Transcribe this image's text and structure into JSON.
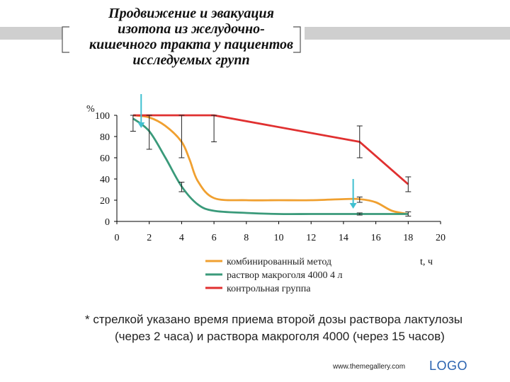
{
  "slide": {
    "title_lines": [
      "Продвижение и эвакуация",
      "изотопа из желудочно-",
      "кишечного тракта у пациентов",
      "исследуемых групп"
    ],
    "note_marker": "*",
    "note_line1": "стрелкой указано время приема второй дозы раствора лактулозы",
    "note_line2": "(через 2 часа) и раствора макроголя 4000 (через 15 часов)",
    "footer_url": "www.themegallery.com",
    "footer_logo": "LOGO"
  },
  "chart_data": {
    "type": "line",
    "title": "",
    "xlabel": "t, ч",
    "ylabel": "%",
    "xlim": [
      0,
      20
    ],
    "ylim": [
      0,
      100
    ],
    "x_ticks": [
      0,
      2,
      4,
      6,
      8,
      10,
      12,
      14,
      16,
      18,
      20
    ],
    "y_ticks": [
      0,
      20,
      40,
      60,
      80,
      100
    ],
    "grid": false,
    "legend_position": "bottom-center",
    "series": [
      {
        "name": "комбинированный метод",
        "color": "#f0a030",
        "x": [
          1,
          2,
          3,
          4,
          4.5,
          5,
          6,
          8,
          10,
          12,
          14,
          15,
          16,
          17,
          18
        ],
        "y": [
          100,
          98,
          90,
          75,
          58,
          38,
          22,
          20,
          20,
          20,
          21,
          21,
          18,
          10,
          7
        ]
      },
      {
        "name": "раствор макроголя 4000 4 л",
        "color": "#3a9a7a",
        "x": [
          1,
          2,
          3,
          4,
          5,
          6,
          8,
          10,
          12,
          14,
          15,
          16,
          18
        ],
        "y": [
          97,
          85,
          60,
          33,
          16,
          10,
          8,
          7,
          7,
          7,
          7,
          7,
          7
        ]
      },
      {
        "name": "контрольная группа",
        "color": "#e03030",
        "x": [
          1,
          6,
          15,
          18
        ],
        "y": [
          100,
          100,
          75,
          35
        ]
      }
    ],
    "error_bars": [
      {
        "x": 1,
        "low": 85,
        "high": 100
      },
      {
        "x": 2,
        "low": 68,
        "high": 100
      },
      {
        "x": 4,
        "low": 60,
        "high": 100
      },
      {
        "x": 4,
        "low": 28,
        "high": 37
      },
      {
        "x": 6,
        "low": 75,
        "high": 100
      },
      {
        "x": 15,
        "low": 60,
        "high": 90
      },
      {
        "x": 15,
        "low": 18,
        "high": 23
      },
      {
        "x": 15,
        "low": 6,
        "high": 8
      },
      {
        "x": 18,
        "low": 28,
        "high": 42
      },
      {
        "x": 18,
        "low": 5,
        "high": 9
      }
    ],
    "arrows": [
      {
        "x": 1.5,
        "y_top": 120,
        "y_tip": 88,
        "color": "#40c0d0"
      },
      {
        "x": 14.6,
        "y_top": 40,
        "y_tip": 12,
        "color": "#40c0d0"
      }
    ]
  }
}
